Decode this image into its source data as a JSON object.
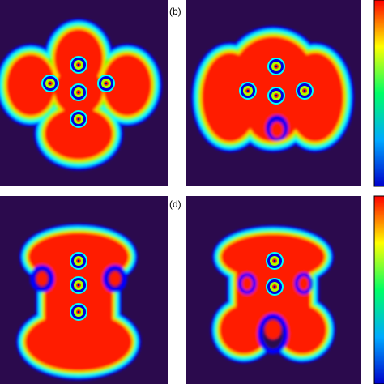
{
  "panels": [
    {
      "label": "(b)"
    },
    {
      "label": "(d)"
    }
  ]
}
